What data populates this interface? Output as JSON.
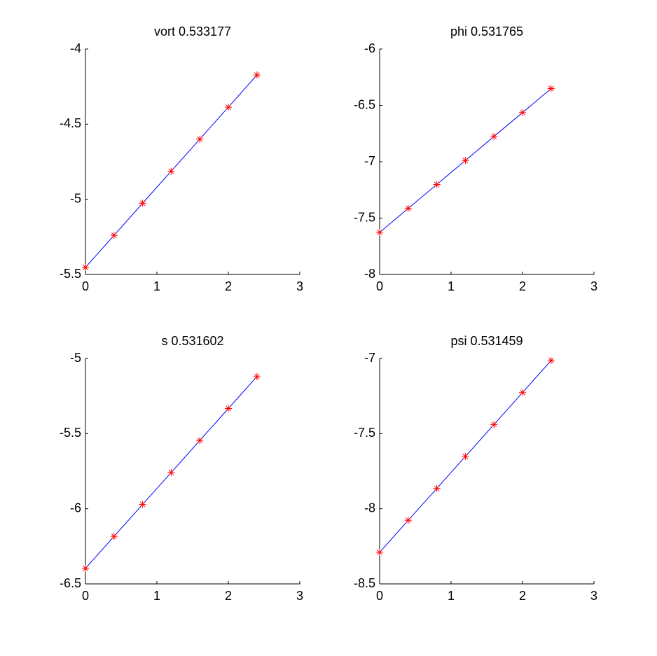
{
  "chart_data": [
    {
      "type": "line",
      "title": "vort 0.533177",
      "x": [
        0,
        0.4,
        0.8,
        1.2,
        1.6,
        2.0,
        2.4
      ],
      "values": [
        -5.453,
        -5.24,
        -5.026,
        -4.813,
        -4.6,
        -4.387,
        -4.173
      ],
      "color": "#0000ff",
      "marker_color": "#ff0000",
      "xlim": [
        0,
        3
      ],
      "xticks": [
        0,
        1,
        2,
        3
      ],
      "ylim": [
        -5.5,
        -4
      ],
      "yticks": [
        -5.5,
        -5,
        -4.5,
        -4
      ]
    },
    {
      "type": "line",
      "title": "phi 0.531765",
      "x": [
        0,
        0.4,
        0.8,
        1.2,
        1.6,
        2.0,
        2.4
      ],
      "values": [
        -7.627,
        -7.414,
        -7.202,
        -6.989,
        -6.776,
        -6.564,
        -6.351
      ],
      "color": "#0000ff",
      "marker_color": "#ff0000",
      "xlim": [
        0,
        3
      ],
      "xticks": [
        0,
        1,
        2,
        3
      ],
      "ylim": [
        -8,
        -6
      ],
      "yticks": [
        -8,
        -7.5,
        -7,
        -6.5,
        -6
      ]
    },
    {
      "type": "line",
      "title": "s 0.531602",
      "x": [
        0,
        0.4,
        0.8,
        1.2,
        1.6,
        2.0,
        2.4
      ],
      "values": [
        -6.397,
        -6.184,
        -5.971,
        -5.759,
        -5.546,
        -5.333,
        -5.121
      ],
      "color": "#0000ff",
      "marker_color": "#ff0000",
      "xlim": [
        0,
        3
      ],
      "xticks": [
        0,
        1,
        2,
        3
      ],
      "ylim": [
        -6.5,
        -5
      ],
      "yticks": [
        -6.5,
        -6,
        -5.5,
        -5
      ]
    },
    {
      "type": "line",
      "title": "psi 0.531459",
      "x": [
        0,
        0.4,
        0.8,
        1.2,
        1.6,
        2.0,
        2.4
      ],
      "values": [
        -8.29,
        -8.077,
        -7.865,
        -7.652,
        -7.44,
        -7.227,
        -7.014
      ],
      "color": "#0000ff",
      "marker_color": "#ff0000",
      "xlim": [
        0,
        3
      ],
      "xticks": [
        0,
        1,
        2,
        3
      ],
      "ylim": [
        -8.5,
        -7
      ],
      "yticks": [
        -8.5,
        -8,
        -7.5,
        -7
      ]
    }
  ]
}
